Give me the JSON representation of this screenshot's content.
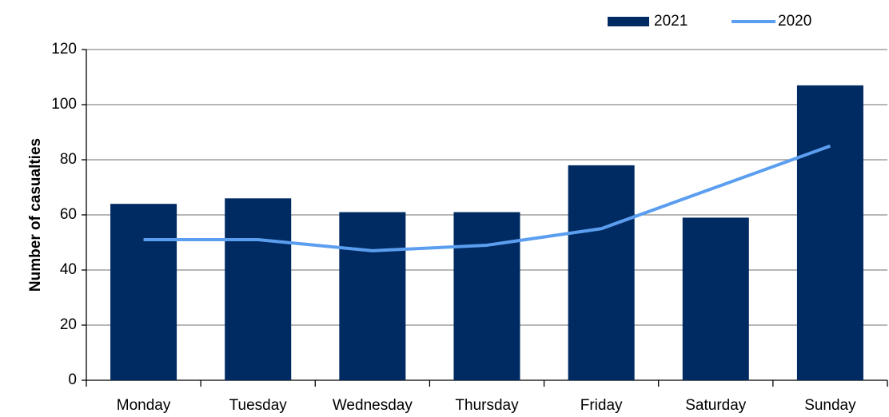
{
  "chart_data": {
    "type": "bar",
    "y_label": "Number of casualties",
    "categories": [
      "Monday",
      "Tuesday",
      "Wednesday",
      "Thursday",
      "Friday",
      "Saturday",
      "Sunday"
    ],
    "series": [
      {
        "name": "2021",
        "type": "bar",
        "color": "#002b62",
        "values": [
          64,
          66,
          61,
          61,
          78,
          59,
          107
        ]
      },
      {
        "name": "2020",
        "type": "line",
        "color": "#5b9ef0",
        "values": [
          51,
          51,
          47,
          49,
          55,
          70,
          85
        ]
      }
    ],
    "ylim": [
      0,
      120
    ],
    "yticks": [
      0,
      20,
      40,
      60,
      80,
      100,
      120
    ],
    "grid": true,
    "legend": "top-right"
  }
}
